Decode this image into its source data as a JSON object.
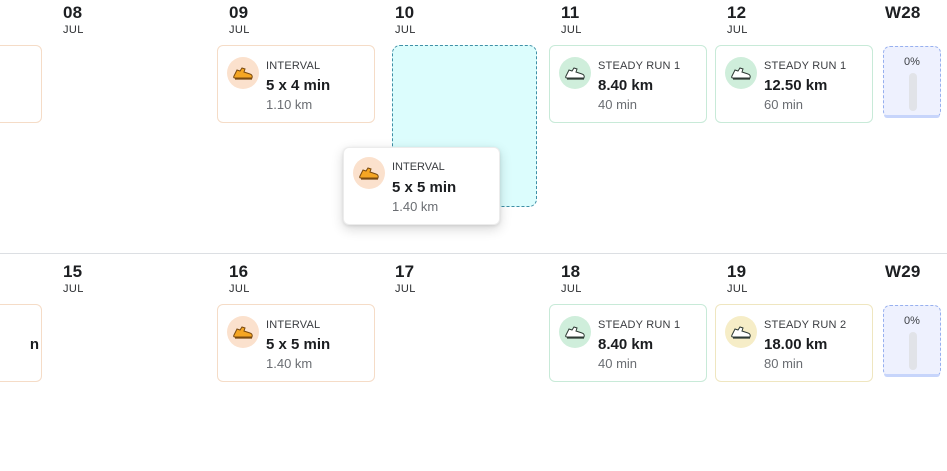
{
  "week28": {
    "label": "W28",
    "progress_label": "0%",
    "progress": 0,
    "days": [
      {
        "num": "08",
        "month": "JUL"
      },
      {
        "num": "09",
        "month": "JUL"
      },
      {
        "num": "10",
        "month": "JUL"
      },
      {
        "num": "11",
        "month": "JUL"
      },
      {
        "num": "12",
        "month": "JUL"
      }
    ]
  },
  "week29": {
    "label": "W29",
    "progress_label": "0%",
    "progress": 0,
    "days": [
      {
        "num": "15",
        "month": "JUL"
      },
      {
        "num": "16",
        "month": "JUL"
      },
      {
        "num": "17",
        "month": "JUL"
      },
      {
        "num": "18",
        "month": "JUL"
      },
      {
        "num": "19",
        "month": "JUL"
      }
    ]
  },
  "workouts": {
    "w28_prev_partial": {},
    "w28_09": {
      "type": "INTERVAL",
      "main": "5 x 4 min",
      "sub": "1.10 km",
      "icon": "running-shoe-icon",
      "color": "#f5a623"
    },
    "w28_11": {
      "type": "STEADY RUN 1",
      "main": "8.40 km",
      "sub": "40 min",
      "icon": "running-shoe-icon",
      "color": "#2f9e5f"
    },
    "w28_12": {
      "type": "STEADY RUN 1",
      "main": "12.50 km",
      "sub": "60 min",
      "icon": "running-shoe-icon",
      "color": "#2f9e5f"
    },
    "w29_prev_partial": {
      "main": "n"
    },
    "w29_16": {
      "type": "INTERVAL",
      "main": "5 x 5 min",
      "sub": "1.40 km",
      "icon": "running-shoe-icon",
      "color": "#f5a623"
    },
    "w29_18": {
      "type": "STEADY RUN 1",
      "main": "8.40 km",
      "sub": "40 min",
      "icon": "running-shoe-icon",
      "color": "#2f9e5f"
    },
    "w29_19": {
      "type": "STEADY RUN 2",
      "main": "18.00 km",
      "sub": "80 min",
      "icon": "running-shoe-icon",
      "color": "#c9a227"
    }
  },
  "dragging": {
    "type": "INTERVAL",
    "main": "5 x 5 min",
    "sub": "1.40 km",
    "icon": "running-shoe-icon",
    "color": "#f5a623"
  }
}
